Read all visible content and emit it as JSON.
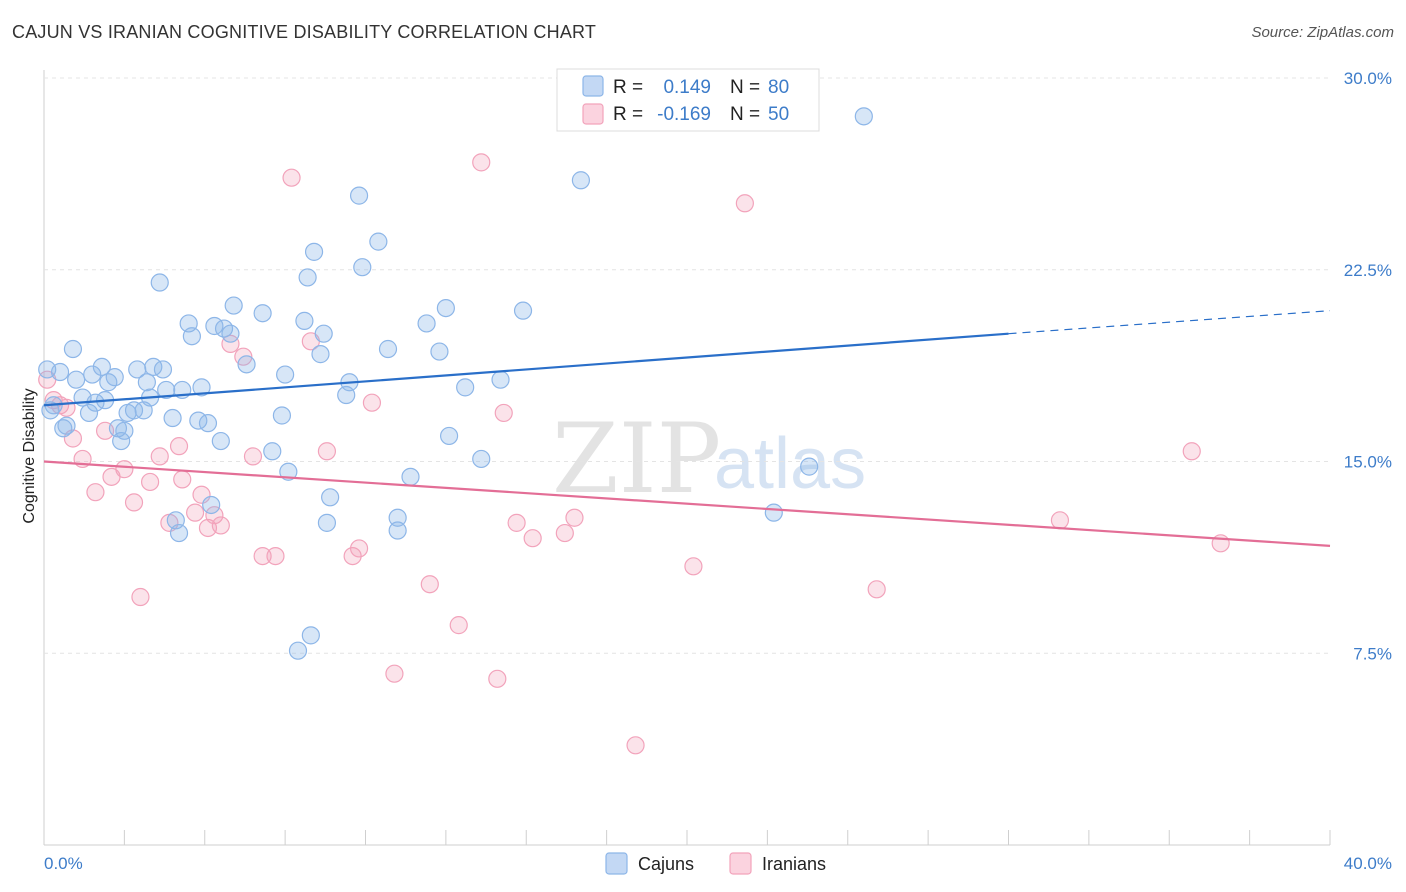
{
  "title": "CAJUN VS IRANIAN COGNITIVE DISABILITY CORRELATION CHART",
  "source": "Source: ZipAtlas.com",
  "watermark": {
    "part1": "ZIP",
    "part2": "atlas"
  },
  "legend": {
    "rows": [
      {
        "r_label": "R =",
        "r_value": "0.149",
        "n_label": "N =",
        "n_value": "80",
        "color": "#8db6e8"
      },
      {
        "r_label": "R =",
        "r_value": "-0.169",
        "n_label": "N =",
        "n_value": "50",
        "color": "#f2a3bb"
      }
    ]
  },
  "bottom_legend": [
    {
      "label": "Cajuns",
      "color": "#8db6e8"
    },
    {
      "label": "Iranians",
      "color": "#f2a3bb"
    }
  ],
  "chart_data": {
    "type": "scatter",
    "title": "CAJUN VS IRANIAN COGNITIVE DISABILITY CORRELATION CHART",
    "xlabel": "",
    "ylabel": "Cognitive Disability",
    "xlim": [
      0,
      40
    ],
    "ylim": [
      0,
      30
    ],
    "x_tick_labels": [
      "0.0%",
      "40.0%"
    ],
    "y_ticks": [
      7.5,
      15.0,
      22.5,
      30.0
    ],
    "y_tick_labels": [
      "7.5%",
      "15.0%",
      "22.5%",
      "30.0%"
    ],
    "grid": true,
    "legend_position": "top-center",
    "series": [
      {
        "name": "Cajuns",
        "color": "#8db6e8",
        "line_color": "#2a6fc9",
        "trend": {
          "x_start": 0,
          "y_start": 17.2,
          "x_end": 30,
          "y_end": 20.0,
          "dash_to_x": 40,
          "dash_to_y": 20.9
        },
        "points": [
          [
            0.1,
            18.6
          ],
          [
            0.2,
            17.0
          ],
          [
            0.3,
            17.2
          ],
          [
            0.5,
            18.5
          ],
          [
            0.6,
            16.3
          ],
          [
            0.7,
            16.4
          ],
          [
            0.9,
            19.4
          ],
          [
            1.0,
            18.2
          ],
          [
            1.2,
            17.5
          ],
          [
            1.4,
            16.9
          ],
          [
            1.5,
            18.4
          ],
          [
            1.6,
            17.3
          ],
          [
            1.8,
            18.7
          ],
          [
            1.9,
            17.4
          ],
          [
            2.0,
            18.1
          ],
          [
            2.2,
            18.3
          ],
          [
            2.3,
            16.3
          ],
          [
            2.4,
            15.8
          ],
          [
            2.5,
            16.2
          ],
          [
            2.6,
            16.9
          ],
          [
            2.8,
            17.0
          ],
          [
            2.9,
            18.6
          ],
          [
            3.1,
            17.0
          ],
          [
            3.2,
            18.1
          ],
          [
            3.3,
            17.5
          ],
          [
            3.4,
            18.7
          ],
          [
            3.6,
            22.0
          ],
          [
            3.7,
            18.6
          ],
          [
            3.8,
            17.8
          ],
          [
            4.0,
            16.7
          ],
          [
            4.1,
            12.7
          ],
          [
            4.2,
            12.2
          ],
          [
            4.3,
            17.8
          ],
          [
            4.5,
            20.4
          ],
          [
            4.6,
            19.9
          ],
          [
            4.8,
            16.6
          ],
          [
            4.9,
            17.9
          ],
          [
            5.1,
            16.5
          ],
          [
            5.2,
            13.3
          ],
          [
            5.3,
            20.3
          ],
          [
            5.5,
            15.8
          ],
          [
            5.6,
            20.2
          ],
          [
            5.8,
            20.0
          ],
          [
            5.9,
            21.1
          ],
          [
            6.3,
            18.8
          ],
          [
            6.8,
            20.8
          ],
          [
            7.1,
            15.4
          ],
          [
            7.4,
            16.8
          ],
          [
            7.5,
            18.4
          ],
          [
            7.6,
            14.6
          ],
          [
            7.9,
            7.6
          ],
          [
            8.1,
            20.5
          ],
          [
            8.2,
            22.2
          ],
          [
            8.3,
            8.2
          ],
          [
            8.4,
            23.2
          ],
          [
            8.6,
            19.2
          ],
          [
            8.7,
            20.0
          ],
          [
            8.8,
            12.6
          ],
          [
            8.9,
            13.6
          ],
          [
            9.4,
            17.6
          ],
          [
            9.5,
            18.1
          ],
          [
            9.8,
            25.4
          ],
          [
            9.9,
            22.6
          ],
          [
            10.4,
            23.6
          ],
          [
            10.7,
            19.4
          ],
          [
            11.0,
            12.8
          ],
          [
            11.0,
            12.3
          ],
          [
            11.4,
            14.4
          ],
          [
            11.9,
            20.4
          ],
          [
            12.3,
            19.3
          ],
          [
            12.5,
            21.0
          ],
          [
            12.6,
            16.0
          ],
          [
            13.1,
            17.9
          ],
          [
            13.6,
            15.1
          ],
          [
            14.2,
            18.2
          ],
          [
            14.9,
            20.9
          ],
          [
            16.7,
            26.0
          ],
          [
            22.7,
            13.0
          ],
          [
            23.8,
            14.8
          ],
          [
            25.5,
            28.5
          ]
        ]
      },
      {
        "name": "Iranians",
        "color": "#f2a3bb",
        "line_color": "#e36e96",
        "trend": {
          "x_start": 0,
          "y_start": 15.0,
          "x_end": 40,
          "y_end": 11.7
        },
        "points": [
          [
            0.1,
            18.2
          ],
          [
            0.3,
            17.4
          ],
          [
            0.5,
            17.2
          ],
          [
            0.7,
            17.1
          ],
          [
            0.9,
            15.9
          ],
          [
            1.2,
            15.1
          ],
          [
            1.6,
            13.8
          ],
          [
            1.9,
            16.2
          ],
          [
            2.1,
            14.4
          ],
          [
            2.5,
            14.7
          ],
          [
            2.8,
            13.4
          ],
          [
            3.0,
            9.7
          ],
          [
            3.3,
            14.2
          ],
          [
            3.6,
            15.2
          ],
          [
            3.9,
            12.6
          ],
          [
            4.2,
            15.6
          ],
          [
            4.3,
            14.3
          ],
          [
            4.7,
            13.0
          ],
          [
            4.9,
            13.7
          ],
          [
            5.1,
            12.4
          ],
          [
            5.3,
            12.9
          ],
          [
            5.5,
            12.5
          ],
          [
            5.8,
            19.6
          ],
          [
            6.2,
            19.1
          ],
          [
            6.5,
            15.2
          ],
          [
            6.8,
            11.3
          ],
          [
            7.2,
            11.3
          ],
          [
            7.7,
            26.1
          ],
          [
            8.3,
            19.7
          ],
          [
            8.8,
            15.4
          ],
          [
            9.6,
            11.3
          ],
          [
            9.8,
            11.6
          ],
          [
            10.2,
            17.3
          ],
          [
            10.9,
            6.7
          ],
          [
            12.0,
            10.2
          ],
          [
            12.9,
            8.6
          ],
          [
            13.6,
            26.7
          ],
          [
            14.1,
            6.5
          ],
          [
            14.3,
            16.9
          ],
          [
            14.7,
            12.6
          ],
          [
            15.2,
            12.0
          ],
          [
            16.2,
            12.2
          ],
          [
            16.5,
            12.8
          ],
          [
            18.4,
            3.9
          ],
          [
            20.2,
            10.9
          ],
          [
            21.8,
            25.1
          ],
          [
            25.9,
            10.0
          ],
          [
            31.6,
            12.7
          ],
          [
            35.7,
            15.4
          ],
          [
            36.6,
            11.8
          ]
        ]
      }
    ]
  }
}
